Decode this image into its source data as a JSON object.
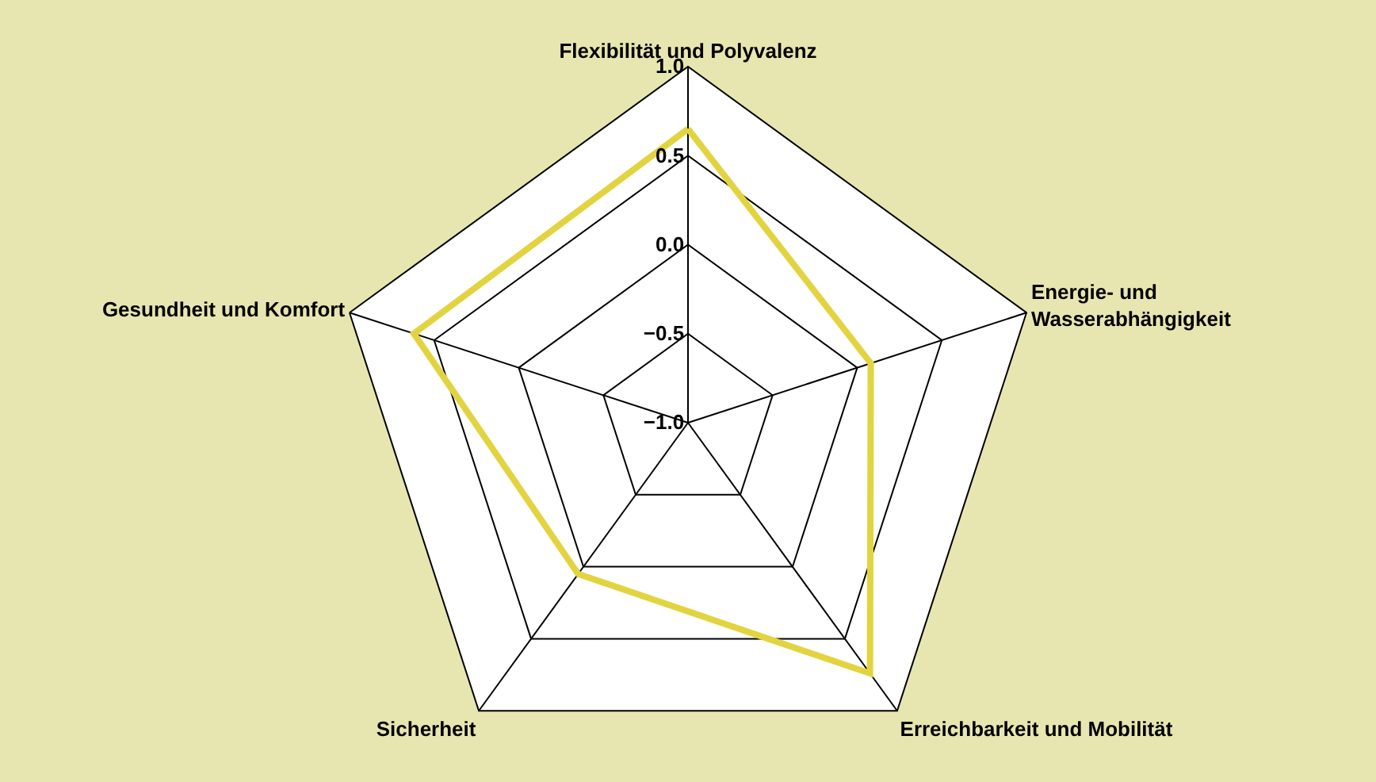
{
  "chart_data": {
    "type": "radar",
    "categories": [
      "Flexibilität und Polyvalenz",
      "Energie- und\nWasserabhängigkeit",
      "Erreichbarkeit und Mobilität",
      "Sicherheit",
      "Gesundheit und Komfort"
    ],
    "series": [
      {
        "color": "#e2d440",
        "values": [
          0.65,
          0.08,
          0.74,
          0.05,
          0.62
        ]
      }
    ],
    "ylim": [
      -1.0,
      1.0
    ],
    "yticks": [
      {
        "value": -1.0,
        "label": "−1.0"
      },
      {
        "value": -0.5,
        "label": "−0.5"
      },
      {
        "value": 0.0,
        "label": "0.0"
      },
      {
        "value": 0.5,
        "label": "0.5"
      },
      {
        "value": 1.0,
        "label": "1.0"
      }
    ],
    "grid": true,
    "legend": false
  }
}
